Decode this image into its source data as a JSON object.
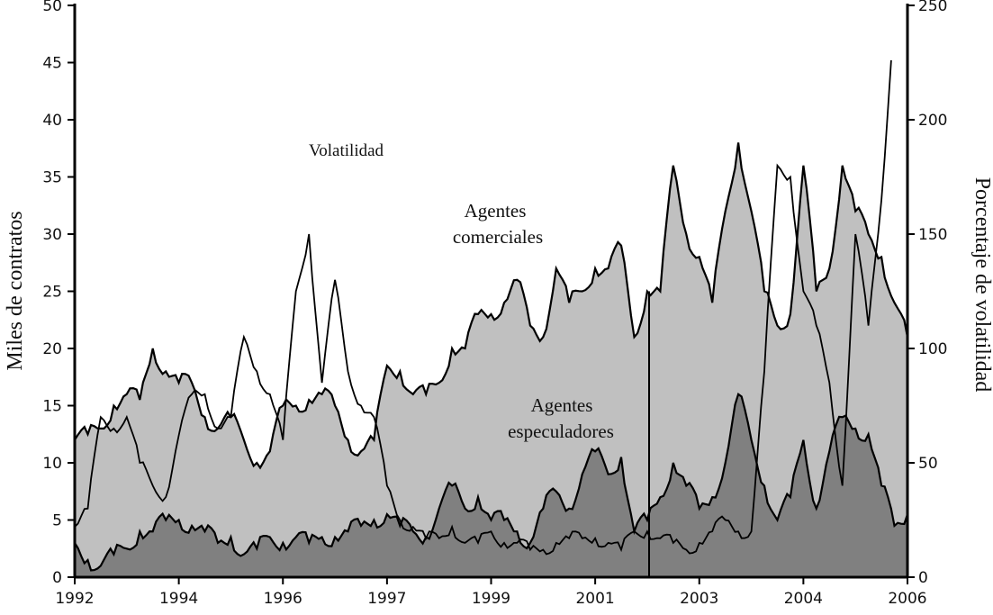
{
  "chart_data": {
    "type": "area",
    "x_tick_labels": [
      "1992",
      "1994",
      "1996",
      "1997",
      "1999",
      "2001",
      "2003",
      "2004",
      "2006"
    ],
    "ylabel_left": "Miles de contratos",
    "ylabel_right": "Porcentaje de volatilidad",
    "ylim_left": [
      0,
      50
    ],
    "ylim_right": [
      0,
      250
    ],
    "y_ticks_left": [
      "0",
      "5",
      "10",
      "15",
      "20",
      "25",
      "30",
      "35",
      "40",
      "45",
      "50"
    ],
    "y_ticks_right": [
      "0",
      "50",
      "100",
      "150",
      "200",
      "250"
    ],
    "grid": false,
    "annotations": {
      "volatility": "Volatilidad",
      "commercial_1": "Agentes",
      "commercial_2": "comerciales",
      "speculators_1": "Agentes",
      "speculators_2": "especuladores"
    },
    "colors": {
      "commercial_fill": "#c0c0c0",
      "speculators_fill": "#808080",
      "line": "#000000"
    },
    "series": [
      {
        "name": "Agentes comerciales",
        "axis": "left",
        "style": "area",
        "values": [
          12,
          12.5,
          13,
          15,
          16,
          15.5,
          20,
          18,
          17,
          17,
          14,
          13,
          14,
          12,
          10,
          11,
          15,
          15,
          15.5,
          16,
          15,
          12,
          11,
          12,
          18.5,
          18,
          16,
          16,
          17,
          20,
          20,
          23,
          23,
          24,
          26,
          22,
          21,
          27,
          24,
          25,
          27,
          27,
          29,
          21,
          25,
          25,
          36,
          30,
          28,
          24,
          32,
          38,
          32,
          25,
          22,
          23,
          36,
          25,
          27,
          36,
          32,
          30,
          28,
          24,
          21
        ]
      },
      {
        "name": "Agentes especuladores",
        "axis": "left",
        "style": "area",
        "values": [
          3,
          1.5,
          1,
          2,
          2.5,
          4,
          4,
          5,
          5,
          4.5,
          4,
          3,
          3.5,
          2,
          2.5,
          3.5,
          3,
          3.5,
          3,
          3.5,
          3.5,
          4,
          4.5,
          5,
          5.5,
          4.5,
          4,
          3.5,
          6,
          8,
          6,
          7,
          5,
          5,
          4,
          3,
          6,
          7.5,
          6,
          9,
          11,
          9,
          10.5,
          4,
          5,
          7,
          10,
          8,
          6,
          7,
          10,
          16,
          12,
          8,
          5,
          7,
          12,
          6,
          11,
          14,
          13,
          12.5,
          8,
          4.5,
          5.5
        ]
      },
      {
        "name": "Volatilidad",
        "axis": "right",
        "style": "line",
        "values": [
          22,
          30,
          70,
          65,
          70,
          50,
          40,
          35,
          62,
          80,
          80,
          65,
          70,
          105,
          90,
          80,
          60,
          125,
          150,
          85,
          130,
          90,
          75,
          70,
          40,
          25,
          22,
          17,
          17,
          22,
          15,
          15,
          20,
          15,
          15,
          12,
          12,
          15,
          17,
          17,
          17,
          15,
          12,
          20,
          20,
          17,
          15,
          12,
          15,
          20,
          25,
          20,
          20,
          90,
          180,
          175,
          125,
          110,
          85,
          40,
          150,
          110,
          165,
          250,
          null
        ]
      }
    ]
  }
}
